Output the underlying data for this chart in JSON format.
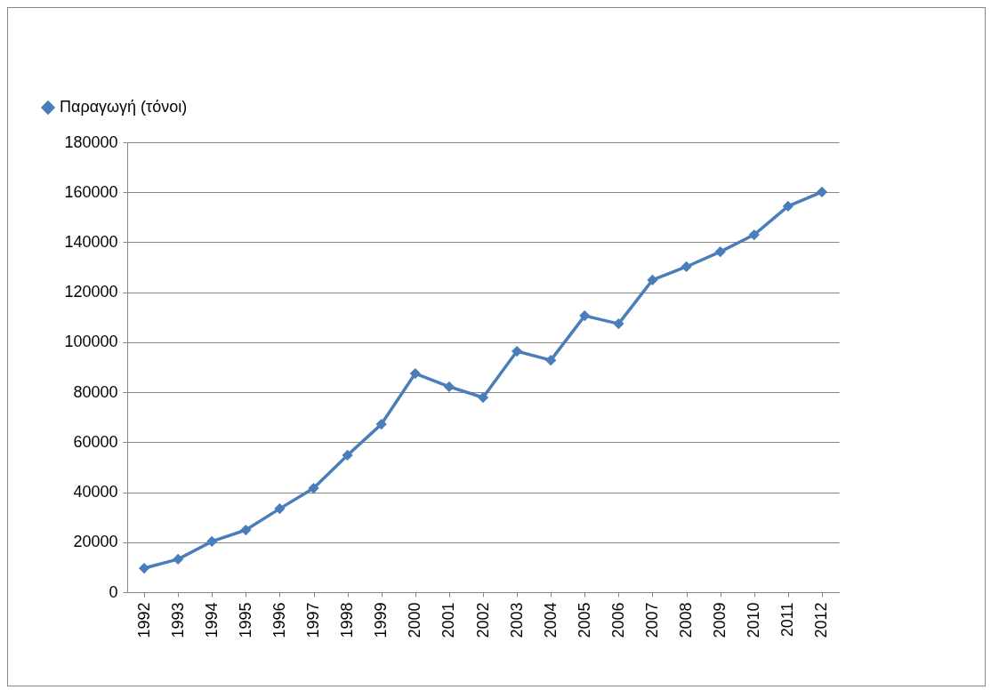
{
  "chart_data": {
    "type": "line",
    "categories": [
      "1992",
      "1993",
      "1994",
      "1995",
      "1996",
      "1997",
      "1998",
      "1999",
      "2000",
      "2001",
      "2002",
      "2003",
      "2004",
      "2005",
      "2006",
      "2007",
      "2008",
      "2009",
      "2010",
      "2011",
      "2012"
    ],
    "series": [
      {
        "name": "Παραγωγή (τόνοι)",
        "color": "#4a7ebb",
        "values": [
          9600,
          13200,
          20300,
          24900,
          33400,
          41600,
          54800,
          67200,
          87500,
          82200,
          77900,
          96400,
          92800,
          110600,
          107400,
          124900,
          130200,
          136200,
          143000,
          154400,
          160100
        ]
      }
    ],
    "ylim": [
      0,
      180000
    ],
    "yticks": [
      0,
      20000,
      40000,
      60000,
      80000,
      100000,
      120000,
      140000,
      160000,
      180000
    ],
    "grid": "y",
    "legend": "top left",
    "marker": "diamond",
    "line_style": "solid"
  }
}
